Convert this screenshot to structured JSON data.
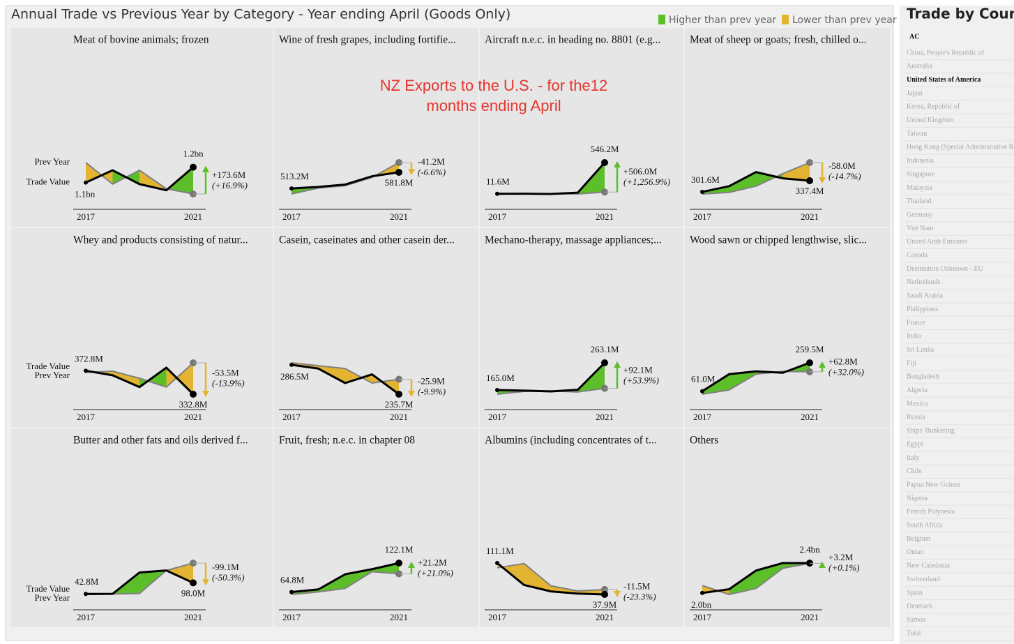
{
  "header": {
    "title": "Annual Trade vs Previous Year by Category - Year ending April (Goods Only)",
    "legend": [
      {
        "label": "Higher than prev year",
        "color": "#5cbf2a"
      },
      {
        "label": "Lower than prev year",
        "color": "#e3b431"
      }
    ]
  },
  "annotation": "NZ Exports to the U.S. - for the12 months ending April",
  "chart_data": [
    {
      "type": "line",
      "title": "Meat of bovine animals; frozen",
      "categories": [
        "2017",
        null,
        null,
        null,
        "2021"
      ],
      "series": [
        {
          "name": "Trade Value",
          "color": "#000000",
          "values": [
            1100,
            1180,
            1090,
            1050,
            1200
          ],
          "value_labels": [
            "1.1bn",
            null,
            null,
            null,
            "1.2bn"
          ]
        },
        {
          "name": "Prev Year",
          "color": "#808080",
          "values": [
            1230,
            1090,
            1180,
            1060,
            1026
          ]
        }
      ],
      "change": {
        "values": [
          173.6,
          16.9
        ],
        "value_labels": [
          "+173.6M",
          "(+16.9%)"
        ]
      }
    },
    {
      "type": "line",
      "title": "Wine of fresh grapes, including fortifie...",
      "categories": [
        "2017",
        null,
        null,
        null,
        "2021"
      ],
      "series": [
        {
          "color": "#000000",
          "values": [
            513.2,
            520,
            530,
            565,
            581.8
          ],
          "value_labels": [
            "513.2M",
            null,
            null,
            null,
            "581.8M"
          ]
        },
        {
          "color": "#808080",
          "values": [
            490,
            515,
            525,
            560,
            623
          ]
        }
      ],
      "change": {
        "values": [
          -41.2,
          -6.6
        ],
        "value_labels": [
          "-41.2M",
          "(-6.6%)"
        ]
      }
    },
    {
      "type": "line",
      "title": "Aircraft n.e.c. in heading no. 8801 (e.g...",
      "categories": [
        "2017",
        null,
        null,
        null,
        "2021"
      ],
      "series": [
        {
          "color": "#000000",
          "values": [
            11.6,
            12,
            8,
            30,
            546.2
          ],
          "value_labels": [
            "11.6M",
            null,
            null,
            null,
            "546.2M"
          ]
        },
        {
          "color": "#808080",
          "values": [
            10,
            11,
            12,
            8,
            40.2
          ]
        }
      ],
      "change": {
        "values": [
          506.0,
          1256.9
        ],
        "value_labels": [
          "+506.0M",
          "(+1,256.9%)"
        ]
      }
    },
    {
      "type": "line",
      "title": "Meat of sheep or goats; fresh, chilled o...",
      "categories": [
        "2017",
        null,
        null,
        null,
        "2021"
      ],
      "series": [
        {
          "color": "#000000",
          "values": [
            301.6,
            320,
            365,
            345,
            337.4
          ],
          "value_labels": [
            "301.6M",
            null,
            null,
            null,
            "337.4M"
          ]
        },
        {
          "color": "#808080",
          "values": [
            295,
            300,
            320,
            360,
            395.4
          ]
        }
      ],
      "change": {
        "values": [
          -58.0,
          -14.7
        ],
        "value_labels": [
          "-58.0M",
          "(-14.7%)"
        ]
      }
    },
    {
      "type": "line",
      "title": "Whey and products consisting of natur...",
      "categories": [
        "2017",
        null,
        null,
        null,
        "2021"
      ],
      "series": [
        {
          "name": "Trade Value",
          "color": "#000000",
          "values": [
            372.8,
            365,
            345,
            378,
            332.8
          ],
          "value_labels": [
            "372.8M",
            null,
            null,
            null,
            "332.8M"
          ]
        },
        {
          "name": "Prev Year",
          "color": "#808080",
          "values": [
            370,
            372,
            360,
            345,
            386.3
          ]
        }
      ],
      "change": {
        "values": [
          -53.5,
          -13.9
        ],
        "value_labels": [
          "-53.5M",
          "(-13.9%)"
        ]
      }
    },
    {
      "type": "line",
      "title": "Casein, caseinates and other casein der...",
      "categories": [
        "2017",
        null,
        null,
        null,
        "2021"
      ],
      "series": [
        {
          "color": "#000000",
          "values": [
            286.5,
            280,
            255,
            270,
            235.7
          ],
          "value_labels": [
            "286.5M",
            null,
            null,
            null,
            "235.7M"
          ]
        },
        {
          "color": "#808080",
          "values": [
            290,
            285,
            280,
            255,
            261.6
          ]
        }
      ],
      "change": {
        "values": [
          -25.9,
          -9.9
        ],
        "value_labels": [
          "-25.9M",
          "(-9.9%)"
        ]
      }
    },
    {
      "type": "line",
      "title": "Mechano-therapy, massage appliances;...",
      "categories": [
        "2017",
        null,
        null,
        null,
        "2021"
      ],
      "series": [
        {
          "color": "#000000",
          "values": [
            165.0,
            163,
            160,
            166,
            263.1
          ],
          "value_labels": [
            "165.0M",
            null,
            null,
            null,
            "263.1M"
          ]
        },
        {
          "color": "#808080",
          "values": [
            150,
            160,
            162,
            158,
            171.0
          ]
        }
      ],
      "change": {
        "values": [
          92.1,
          53.9
        ],
        "value_labels": [
          "+92.1M",
          "(+53.9%)"
        ]
      }
    },
    {
      "type": "line",
      "title": "Wood sawn or chipped lengthwise, slic...",
      "categories": [
        "2017",
        null,
        null,
        null,
        "2021"
      ],
      "series": [
        {
          "color": "#000000",
          "values": [
            61.0,
            180,
            200,
            190,
            259.5
          ],
          "value_labels": [
            "61.0M",
            null,
            null,
            null,
            "259.5M"
          ]
        },
        {
          "color": "#808080",
          "values": [
            40,
            70,
            180,
            200,
            196.7
          ]
        }
      ],
      "change": {
        "values": [
          62.8,
          32.0
        ],
        "value_labels": [
          "+62.8M",
          "(+32.0%)"
        ]
      }
    },
    {
      "type": "line",
      "title": "Butter and other fats and oils derived f...",
      "categories": [
        "2017",
        null,
        null,
        null,
        "2021"
      ],
      "series": [
        {
          "name": "Trade Value",
          "color": "#000000",
          "values": [
            42.8,
            43,
            150,
            160,
            98.0
          ],
          "value_labels": [
            "42.8M",
            null,
            null,
            null,
            "98.0M"
          ]
        },
        {
          "name": "Prev Year",
          "color": "#808080",
          "values": [
            40,
            42,
            45,
            160,
            197.1
          ]
        }
      ],
      "change": {
        "values": [
          -99.1,
          -50.3
        ],
        "value_labels": [
          "-99.1M",
          "(-50.3%)"
        ]
      }
    },
    {
      "type": "line",
      "title": "Fruit, fresh; n.e.c. in chapter 08",
      "categories": [
        "2017",
        null,
        null,
        null,
        "2021"
      ],
      "series": [
        {
          "color": "#000000",
          "values": [
            64.8,
            70,
            100,
            110,
            122.1
          ],
          "value_labels": [
            "64.8M",
            null,
            null,
            null,
            "122.1M"
          ]
        },
        {
          "color": "#808080",
          "values": [
            60,
            65,
            72,
            105,
            100.9
          ]
        }
      ],
      "change": {
        "values": [
          21.2,
          21.0
        ],
        "value_labels": [
          "+21.2M",
          "(+21.0%)"
        ]
      }
    },
    {
      "type": "line",
      "title": "Albumins (including concentrates of t...",
      "categories": [
        "2017",
        null,
        null,
        null,
        "2021"
      ],
      "series": [
        {
          "color": "#000000",
          "values": [
            111.1,
            60,
            45,
            40,
            37.9
          ],
          "value_labels": [
            "111.1M",
            null,
            null,
            null,
            "37.9M"
          ]
        },
        {
          "color": "#808080",
          "values": [
            100,
            110,
            58,
            46,
            49.4
          ]
        }
      ],
      "change": {
        "values": [
          -11.5,
          -23.3
        ],
        "value_labels": [
          "-11.5M",
          "(-23.3%)"
        ]
      }
    },
    {
      "type": "line",
      "title": "Others",
      "categories": [
        "2017",
        null,
        null,
        null,
        "2021"
      ],
      "series": [
        {
          "color": "#000000",
          "values": [
            2000,
            2050,
            2300,
            2400,
            2400
          ],
          "value_labels": [
            "2.0bn",
            null,
            null,
            null,
            "2.4bn"
          ]
        },
        {
          "color": "#808080",
          "values": [
            2100,
            1980,
            2060,
            2330,
            2396.8
          ]
        }
      ],
      "change": {
        "values": [
          3.2,
          0.1
        ],
        "value_labels": [
          "+3.2M",
          "(+0.1%)"
        ]
      }
    }
  ],
  "sidebar": {
    "title": "Trade by Country",
    "header": "AC",
    "selected": 2,
    "items": [
      "China, People's Republic of",
      "Australia",
      "United States of America",
      "Japan",
      "Korea, Republic of",
      "United Kingdom",
      "Taiwan",
      "Hong Kong (Special Administrative Region)",
      "Indonesia",
      "Singapore",
      "Malaysia",
      "Thailand",
      "Germany",
      "Viet Nam",
      "United Arab Emirates",
      "Canada",
      "Destination Unknown - EU",
      "Netherlands",
      "Saudi Arabia",
      "Philippines",
      "France",
      "India",
      "Sri Lanka",
      "Fiji",
      "Bangladesh",
      "Algeria",
      "Mexico",
      "Russia",
      "Ships' Bunkering",
      "Egypt",
      "Italy",
      "Chile",
      "Papua New Guinea",
      "Nigeria",
      "French Polynesia",
      "South Africa",
      "Belgium",
      "Oman",
      "New Caledonia",
      "Switzerland",
      "Spain",
      "Denmark",
      "Samoa",
      "Total"
    ]
  }
}
